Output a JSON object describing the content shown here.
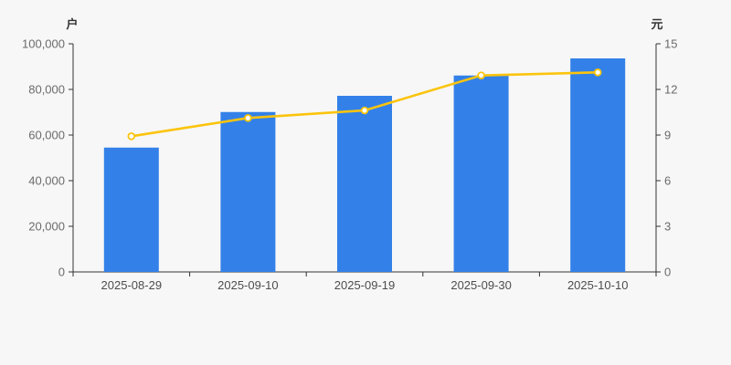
{
  "page": {
    "background_color": "#f7f7f7"
  },
  "chart_data": {
    "type": "bar+line",
    "title": "",
    "categories": [
      "2025-08-29",
      "2025-09-10",
      "2025-09-19",
      "2025-09-30",
      "2025-10-10"
    ],
    "series": [
      {
        "name": "holder-count-bars",
        "type": "bar",
        "axis": "left",
        "unit": "户",
        "values": [
          54500,
          70100,
          77200,
          86100,
          93600
        ],
        "color": "#3381e8"
      },
      {
        "name": "price-line",
        "type": "line",
        "axis": "right",
        "unit": "元",
        "values": [
          8.92,
          10.12,
          10.62,
          12.92,
          13.12
        ],
        "color": "#fbc40d",
        "marker_fill": "#ffffff",
        "marker_stroke": "#fbc40d"
      }
    ],
    "y_axis_left": {
      "unit_label": "户",
      "min": 0,
      "max": 100000,
      "tick_values": [
        0,
        20000,
        40000,
        60000,
        80000,
        100000
      ],
      "tick_labels": [
        "0",
        "20,000",
        "40,000",
        "60,000",
        "80,000",
        "100,000"
      ]
    },
    "y_axis_right": {
      "unit_label": "元",
      "min": 0,
      "max": 15,
      "tick_values": [
        0,
        3,
        6,
        9,
        12,
        15
      ],
      "tick_labels": [
        "0",
        "3",
        "6",
        "9",
        "12",
        "15"
      ]
    },
    "grid": false,
    "legend": false,
    "axis_color": "#333333",
    "tick_label_color": "#6b6b6b",
    "x_label_color": "#4d4d4d"
  }
}
